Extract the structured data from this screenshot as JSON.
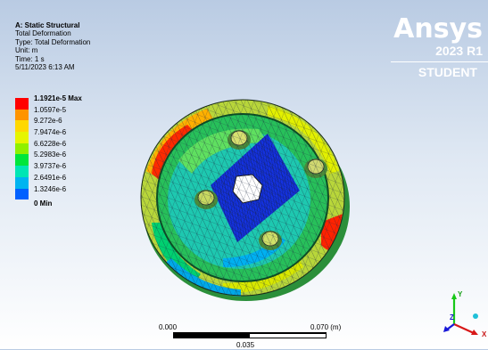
{
  "info": {
    "title": "A: Static Structural",
    "line1": "Total Deformation",
    "line2": "Type: Total Deformation",
    "line3": "Unit: m",
    "line4": "Time: 1 s",
    "line5": "5/11/2023 6:13 AM"
  },
  "legend": {
    "max_label": "1.1921e-5 Max",
    "labels": [
      "1.0597e-5",
      "9.272e-6",
      "7.9474e-6",
      "6.6228e-6",
      "5.2983e-6",
      "3.9737e-6",
      "2.6491e-6",
      "1.3246e-6"
    ],
    "min_label": "0 Min",
    "colors": [
      "#ff0000",
      "#ff9400",
      "#ffd800",
      "#e6f500",
      "#8ff000",
      "#00e63c",
      "#00e6b4",
      "#00b4f0",
      "#0060ff",
      "#0000e0"
    ]
  },
  "brand": {
    "name": "Ansys",
    "release": "2023 R1",
    "edition": "STUDENT"
  },
  "scale": {
    "start": "0.000",
    "end": "0.070 (m)",
    "mid": "0.035"
  },
  "triad": {
    "y": "Y",
    "z": "Z",
    "x": "X"
  }
}
